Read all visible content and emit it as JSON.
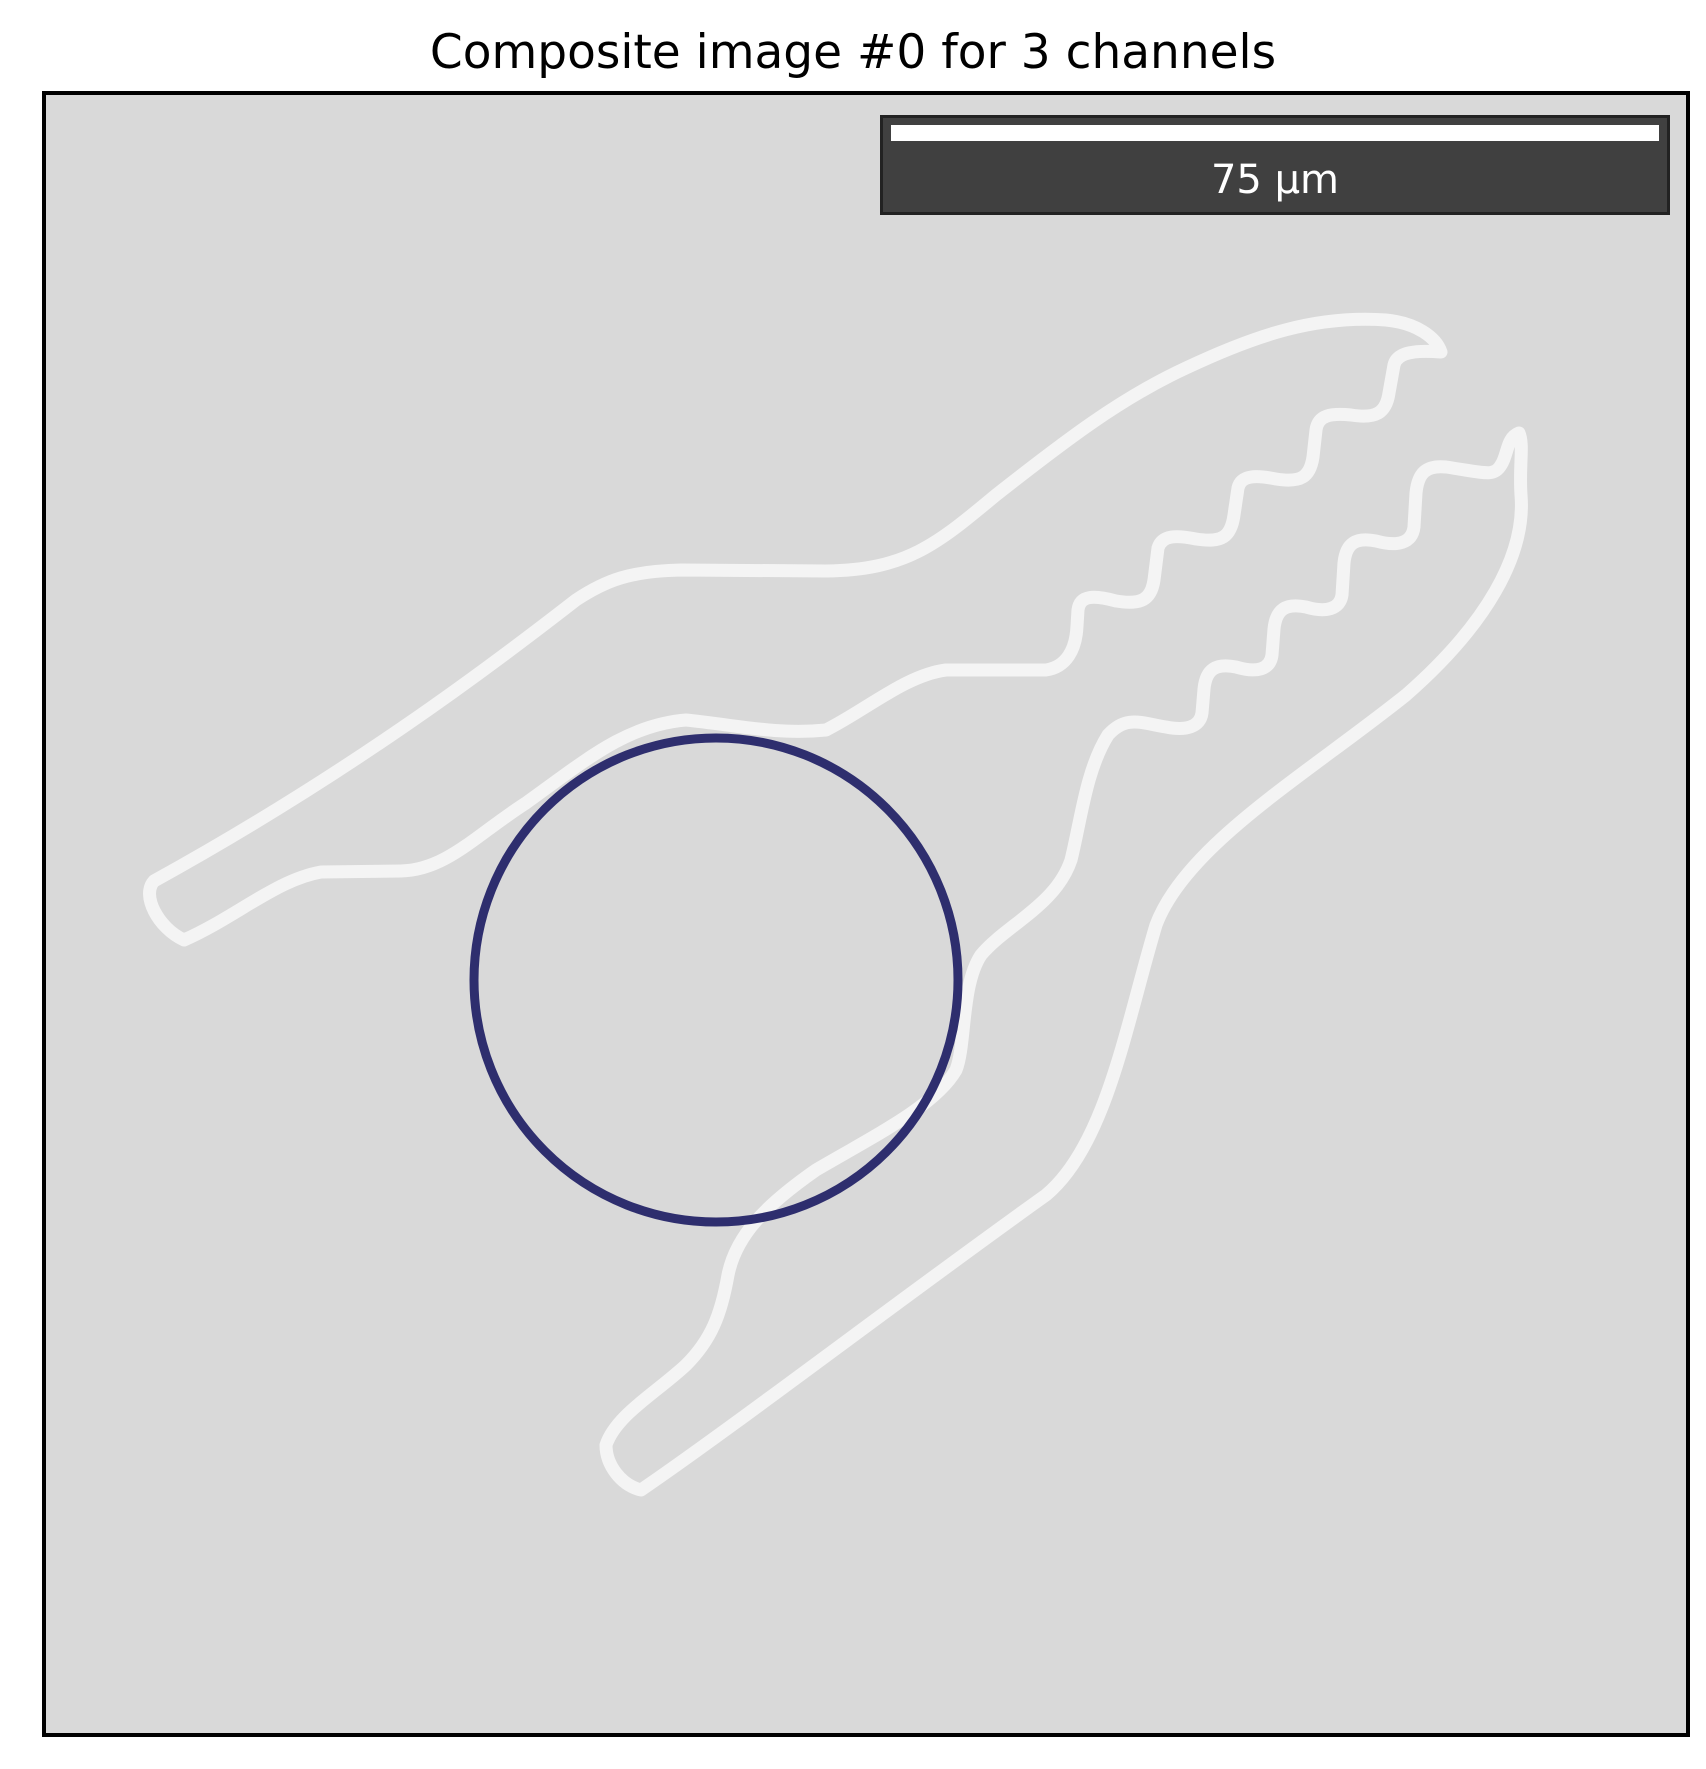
{
  "title": "Composite image #0 for 3 channels",
  "colors": {
    "background": "#d9d9d9",
    "cell_outline": "#f4f4f4",
    "nucleus_outline": "#2e2e6e",
    "frame": "#000000",
    "scalebar_background": "#404040",
    "scalebar_bar": "#ffffff",
    "scalebar_text": "#ffffff"
  },
  "scalebar": {
    "label": "75 µm"
  }
}
